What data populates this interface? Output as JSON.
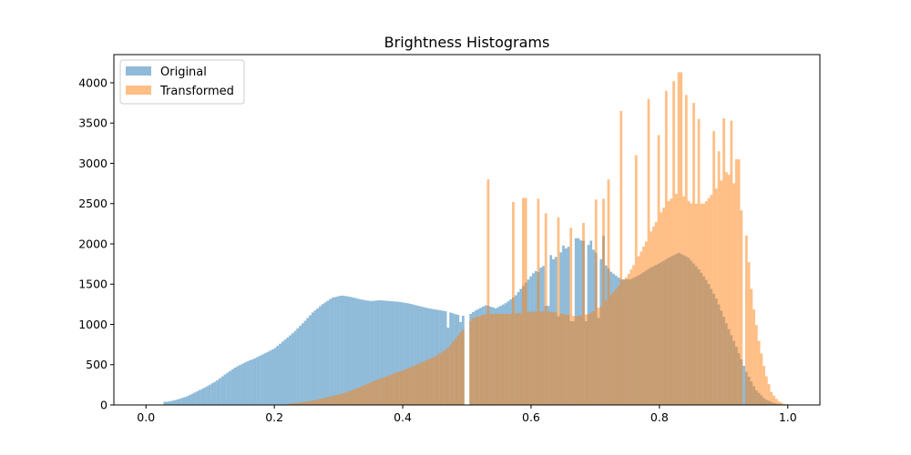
{
  "chart_data": {
    "type": "bar",
    "title": "Brightness Histograms",
    "xlabel": "",
    "ylabel": "",
    "xlim": [
      -0.05,
      1.05
    ],
    "ylim": [
      0,
      4350
    ],
    "x_ticks": [
      0.0,
      0.2,
      0.4,
      0.6,
      0.8,
      1.0
    ],
    "x_tick_labels": [
      "0.0",
      "0.2",
      "0.4",
      "0.6",
      "0.8",
      "1.0"
    ],
    "y_ticks": [
      0,
      500,
      1000,
      1500,
      2000,
      2500,
      3000,
      3500,
      4000
    ],
    "y_tick_labels": [
      "0",
      "500",
      "1000",
      "1500",
      "2000",
      "2500",
      "3000",
      "3500",
      "4000"
    ],
    "bin_width": 0.00390625,
    "legend_position": "upper-left",
    "series": [
      {
        "name": "Original",
        "color": "#1f77b4",
        "alpha": 0.5,
        "bins": [
          {
            "x": 0.035,
            "y": 40
          },
          {
            "x": 0.05,
            "y": 70
          },
          {
            "x": 0.065,
            "y": 110
          },
          {
            "x": 0.08,
            "y": 170
          },
          {
            "x": 0.095,
            "y": 230
          },
          {
            "x": 0.11,
            "y": 300
          },
          {
            "x": 0.125,
            "y": 390
          },
          {
            "x": 0.14,
            "y": 470
          },
          {
            "x": 0.155,
            "y": 530
          },
          {
            "x": 0.17,
            "y": 580
          },
          {
            "x": 0.185,
            "y": 640
          },
          {
            "x": 0.2,
            "y": 700
          },
          {
            "x": 0.215,
            "y": 800
          },
          {
            "x": 0.23,
            "y": 900
          },
          {
            "x": 0.245,
            "y": 1020
          },
          {
            "x": 0.26,
            "y": 1150
          },
          {
            "x": 0.275,
            "y": 1250
          },
          {
            "x": 0.29,
            "y": 1330
          },
          {
            "x": 0.305,
            "y": 1360
          },
          {
            "x": 0.32,
            "y": 1340
          },
          {
            "x": 0.335,
            "y": 1310
          },
          {
            "x": 0.35,
            "y": 1290
          },
          {
            "x": 0.365,
            "y": 1300
          },
          {
            "x": 0.38,
            "y": 1290
          },
          {
            "x": 0.395,
            "y": 1280
          },
          {
            "x": 0.41,
            "y": 1260
          },
          {
            "x": 0.425,
            "y": 1230
          },
          {
            "x": 0.44,
            "y": 1200
          },
          {
            "x": 0.455,
            "y": 1180
          },
          {
            "x": 0.47,
            "y": 1160
          },
          {
            "x": 0.485,
            "y": 1120
          },
          {
            "x": 0.5,
            "y": 1100
          },
          {
            "x": 0.515,
            "y": 1180
          },
          {
            "x": 0.53,
            "y": 1240
          },
          {
            "x": 0.545,
            "y": 1200
          },
          {
            "x": 0.56,
            "y": 1260
          },
          {
            "x": 0.575,
            "y": 1350
          },
          {
            "x": 0.59,
            "y": 1500
          },
          {
            "x": 0.605,
            "y": 1650
          },
          {
            "x": 0.62,
            "y": 1730
          },
          {
            "x": 0.635,
            "y": 1810
          },
          {
            "x": 0.65,
            "y": 1920
          },
          {
            "x": 0.665,
            "y": 2000
          },
          {
            "x": 0.68,
            "y": 2050
          },
          {
            "x": 0.695,
            "y": 1950
          },
          {
            "x": 0.71,
            "y": 1800
          },
          {
            "x": 0.725,
            "y": 1650
          },
          {
            "x": 0.74,
            "y": 1560
          },
          {
            "x": 0.755,
            "y": 1560
          },
          {
            "x": 0.77,
            "y": 1620
          },
          {
            "x": 0.785,
            "y": 1700
          },
          {
            "x": 0.8,
            "y": 1760
          },
          {
            "x": 0.815,
            "y": 1830
          },
          {
            "x": 0.83,
            "y": 1890
          },
          {
            "x": 0.845,
            "y": 1830
          },
          {
            "x": 0.86,
            "y": 1700
          },
          {
            "x": 0.875,
            "y": 1530
          },
          {
            "x": 0.89,
            "y": 1300
          },
          {
            "x": 0.905,
            "y": 1000
          },
          {
            "x": 0.92,
            "y": 720
          },
          {
            "x": 0.935,
            "y": 420
          },
          {
            "x": 0.95,
            "y": 190
          },
          {
            "x": 0.965,
            "y": 70
          },
          {
            "x": 0.98,
            "y": 20
          },
          {
            "x": 0.995,
            "y": 5
          }
        ],
        "spikes": [
          {
            "x": 0.612,
            "y": 1650
          },
          {
            "x": 0.632,
            "y": 1860
          },
          {
            "x": 0.652,
            "y": 1980
          },
          {
            "x": 0.672,
            "y": 2070
          },
          {
            "x": 0.692,
            "y": 2040
          },
          {
            "x": 0.712,
            "y": 2100
          }
        ],
        "dips": [
          {
            "x": 0.472,
            "y": 960
          },
          {
            "x": 0.49,
            "y": 1030
          },
          {
            "x": 0.625,
            "y": 1230
          },
          {
            "x": 0.644,
            "y": 1100
          },
          {
            "x": 0.664,
            "y": 1040
          },
          {
            "x": 0.684,
            "y": 1040
          },
          {
            "x": 0.705,
            "y": 1080
          }
        ],
        "gaps": [
          0.5
        ]
      },
      {
        "name": "Transformed",
        "color": "#ff7f0e",
        "alpha": 0.5,
        "bins": [
          {
            "x": 0.23,
            "y": 20
          },
          {
            "x": 0.25,
            "y": 40
          },
          {
            "x": 0.27,
            "y": 70
          },
          {
            "x": 0.29,
            "y": 110
          },
          {
            "x": 0.31,
            "y": 150
          },
          {
            "x": 0.33,
            "y": 210
          },
          {
            "x": 0.35,
            "y": 280
          },
          {
            "x": 0.37,
            "y": 340
          },
          {
            "x": 0.39,
            "y": 400
          },
          {
            "x": 0.41,
            "y": 460
          },
          {
            "x": 0.43,
            "y": 530
          },
          {
            "x": 0.45,
            "y": 600
          },
          {
            "x": 0.47,
            "y": 700
          },
          {
            "x": 0.49,
            "y": 900
          },
          {
            "x": 0.51,
            "y": 1080
          },
          {
            "x": 0.53,
            "y": 1130
          },
          {
            "x": 0.55,
            "y": 1130
          },
          {
            "x": 0.57,
            "y": 1130
          },
          {
            "x": 0.59,
            "y": 1150
          },
          {
            "x": 0.61,
            "y": 1160
          },
          {
            "x": 0.63,
            "y": 1160
          },
          {
            "x": 0.65,
            "y": 1130
          },
          {
            "x": 0.67,
            "y": 1100
          },
          {
            "x": 0.69,
            "y": 1130
          },
          {
            "x": 0.71,
            "y": 1230
          },
          {
            "x": 0.73,
            "y": 1420
          },
          {
            "x": 0.75,
            "y": 1600
          },
          {
            "x": 0.77,
            "y": 1880
          },
          {
            "x": 0.79,
            "y": 2200
          },
          {
            "x": 0.81,
            "y": 2500
          },
          {
            "x": 0.83,
            "y": 2650
          },
          {
            "x": 0.85,
            "y": 2500
          },
          {
            "x": 0.87,
            "y": 2500
          },
          {
            "x": 0.89,
            "y": 2700
          },
          {
            "x": 0.905,
            "y": 2900
          },
          {
            "x": 0.92,
            "y": 2700
          },
          {
            "x": 0.935,
            "y": 2150
          },
          {
            "x": 0.945,
            "y": 1300
          },
          {
            "x": 0.955,
            "y": 800
          },
          {
            "x": 0.965,
            "y": 400
          },
          {
            "x": 0.975,
            "y": 150
          },
          {
            "x": 0.985,
            "y": 50
          },
          {
            "x": 0.995,
            "y": 10
          }
        ],
        "spikes": [
          {
            "x": 0.534,
            "y": 2800
          },
          {
            "x": 0.572,
            "y": 2520
          },
          {
            "x": 0.59,
            "y": 2570
          },
          {
            "x": 0.612,
            "y": 2560
          },
          {
            "x": 0.624,
            "y": 2380
          },
          {
            "x": 0.644,
            "y": 2330
          },
          {
            "x": 0.662,
            "y": 2200
          },
          {
            "x": 0.682,
            "y": 2260
          },
          {
            "x": 0.7,
            "y": 2550
          },
          {
            "x": 0.712,
            "y": 2560
          },
          {
            "x": 0.722,
            "y": 2800
          },
          {
            "x": 0.74,
            "y": 3650
          },
          {
            "x": 0.762,
            "y": 3100
          },
          {
            "x": 0.784,
            "y": 3800
          },
          {
            "x": 0.8,
            "y": 3350
          },
          {
            "x": 0.81,
            "y": 3900
          },
          {
            "x": 0.822,
            "y": 4020
          },
          {
            "x": 0.832,
            "y": 4130
          },
          {
            "x": 0.842,
            "y": 3850
          },
          {
            "x": 0.852,
            "y": 3750
          },
          {
            "x": 0.862,
            "y": 3550
          },
          {
            "x": 0.884,
            "y": 3400
          },
          {
            "x": 0.894,
            "y": 3150
          },
          {
            "x": 0.902,
            "y": 3560
          },
          {
            "x": 0.912,
            "y": 3530
          },
          {
            "x": 0.922,
            "y": 3050
          }
        ],
        "dips": [],
        "gaps": [
          0.5,
          0.931
        ]
      }
    ]
  }
}
